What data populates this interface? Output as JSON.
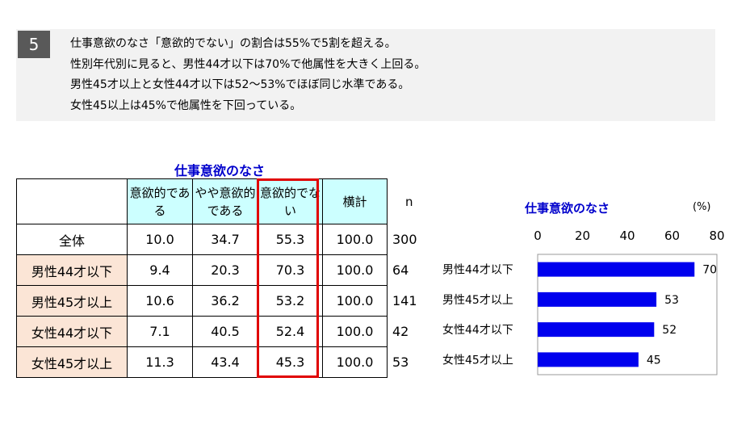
{
  "note": {
    "number": "5",
    "lines": [
      "仕事意欲のなさ「意欲的でない」の割合は55%で5割を超える。",
      "性別年代別に見ると、男性44才以下は70%で他属性を大きく上回る。",
      "男性45才以上と女性44才以下は52～53%でほぼ同じ水準である。",
      "女性45以上は45%で他属性を下回っている。"
    ]
  },
  "table": {
    "title": "仕事意欲のなさ",
    "headers": [
      "意欲的である",
      "やや意欲的である",
      "意欲的でない",
      "横計",
      "n"
    ],
    "rows": [
      {
        "label": "全体",
        "values": [
          "10.0",
          "34.7",
          "55.3",
          "100.0"
        ],
        "n": "300"
      },
      {
        "label": "男性44才以下",
        "values": [
          "9.4",
          "20.3",
          "70.3",
          "100.0"
        ],
        "n": "64"
      },
      {
        "label": "男性45才以上",
        "values": [
          "10.6",
          "36.2",
          "53.2",
          "100.0"
        ],
        "n": "141"
      },
      {
        "label": "女性44才以下",
        "values": [
          "7.1",
          "40.5",
          "52.4",
          "100.0"
        ],
        "n": "42"
      },
      {
        "label": "女性45才以上",
        "values": [
          "11.3",
          "43.4",
          "45.3",
          "100.0"
        ],
        "n": "53"
      }
    ],
    "highlight_color": "#e00000",
    "header_color": "#ccffff",
    "rowlabel_color": "#fbe5d6"
  },
  "chart_data": {
    "type": "bar",
    "orientation": "horizontal",
    "title": "仕事意欲のなさ",
    "unit": "(%)",
    "categories": [
      "男性44才以下",
      "男性45才以上",
      "女性44才以下",
      "女性45才以上"
    ],
    "values": [
      70,
      53,
      52,
      45
    ],
    "xlim": [
      0,
      80
    ],
    "ticks": [
      0,
      20,
      40,
      60,
      80
    ],
    "bar_color": "#0000ee",
    "legend": "none",
    "grid": false
  }
}
